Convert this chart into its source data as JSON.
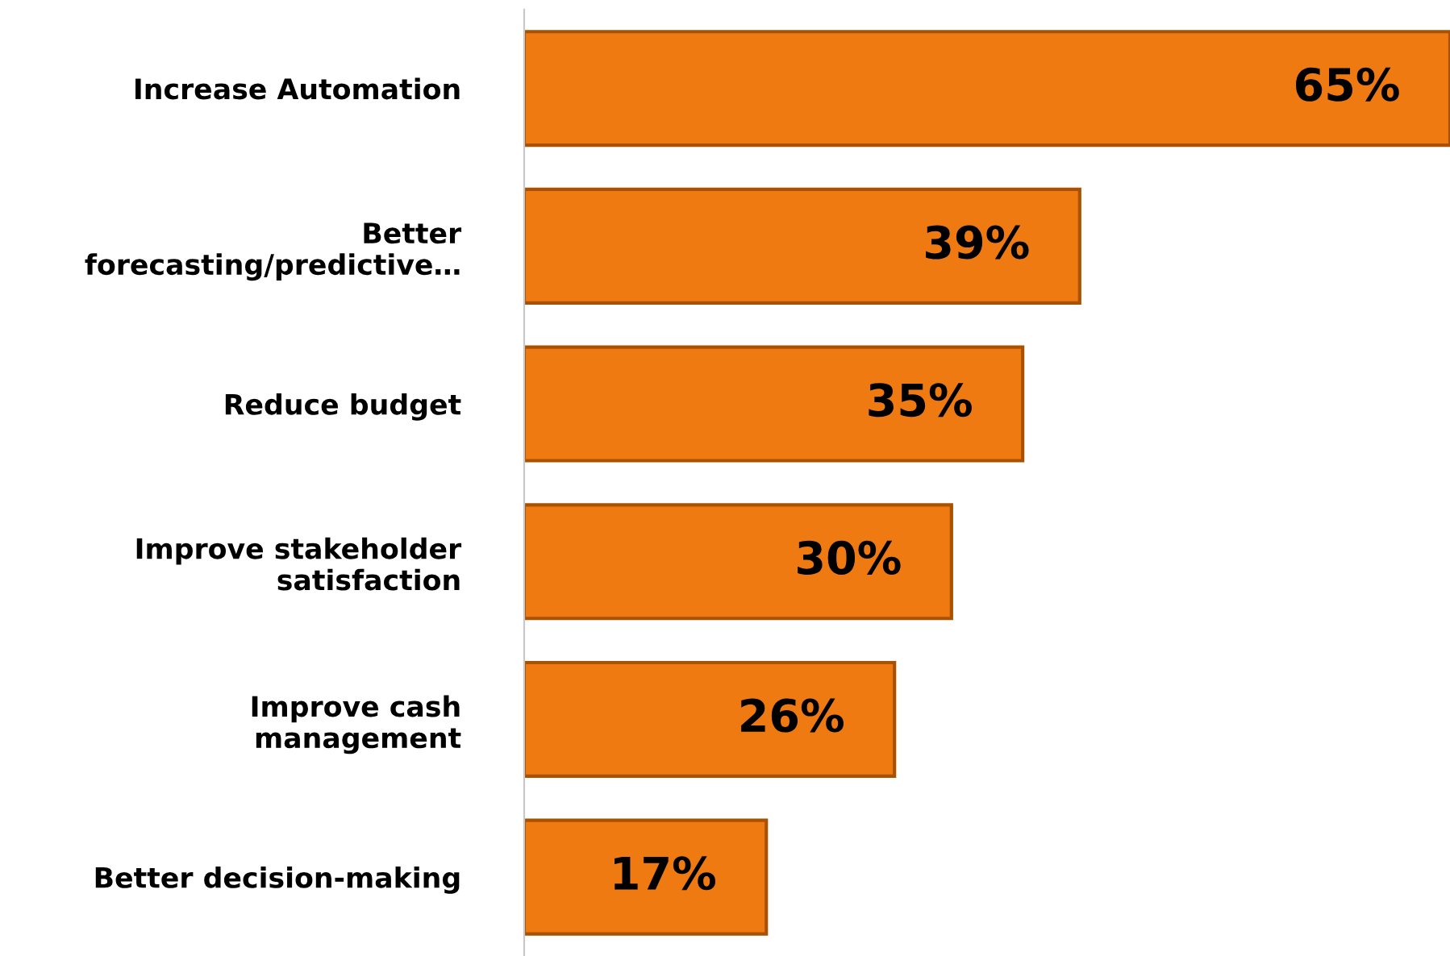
{
  "chart_data": {
    "type": "bar",
    "orientation": "horizontal",
    "categories": [
      "Increase Automation",
      "Better\nforecasting/predictive…",
      "Reduce budget",
      "Improve stakeholder\nsatisfaction",
      "Improve cash\nmanagement",
      "Better decision-making"
    ],
    "values": [
      65,
      39,
      35,
      30,
      26,
      17
    ],
    "value_labels": [
      "65%",
      "39%",
      "35%",
      "30%",
      "26%",
      "17%"
    ],
    "color": "#f07a12",
    "grid": false,
    "legend": false,
    "tick_labels": "y"
  }
}
